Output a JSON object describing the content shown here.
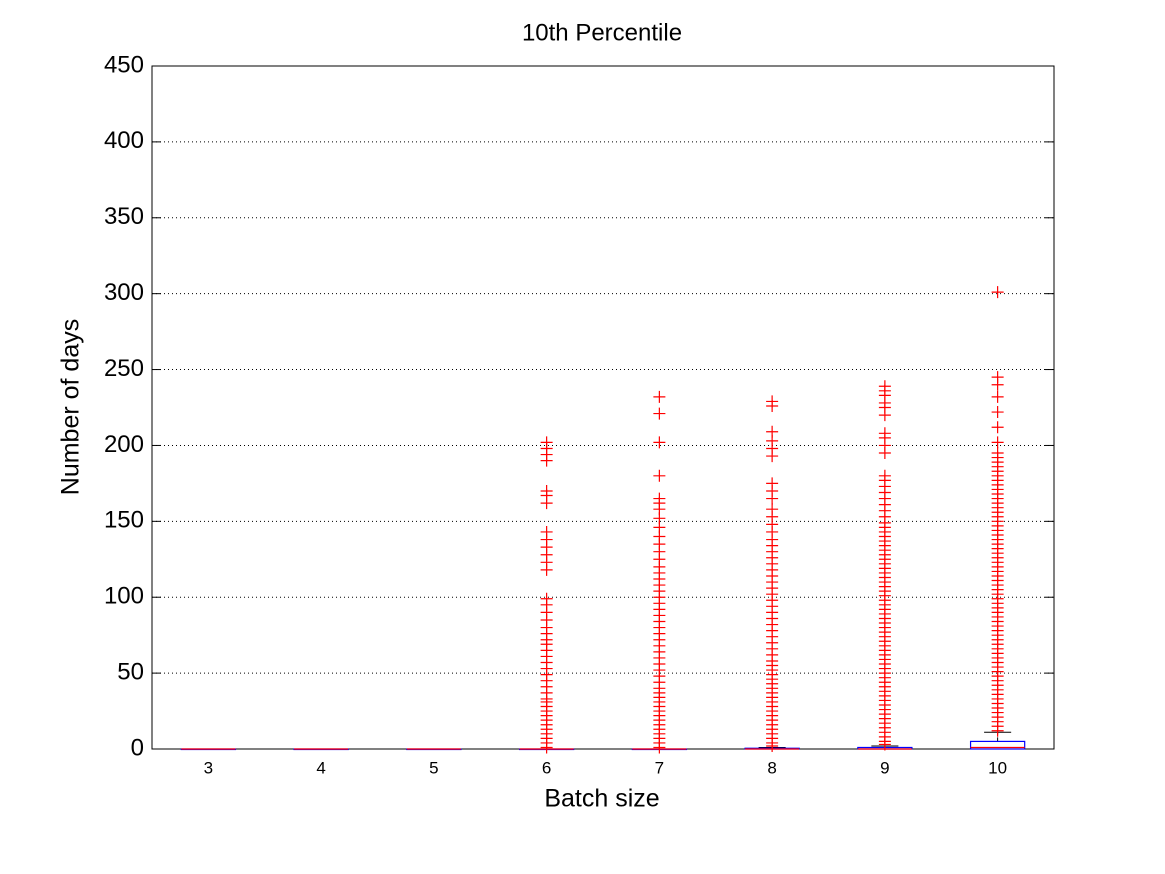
{
  "chart_data": {
    "type": "box",
    "title": "10th Percentile",
    "x_label": "Batch size",
    "y_label": "Number of days",
    "categories": [
      3,
      4,
      5,
      6,
      7,
      8,
      9,
      10
    ],
    "boxes": [
      {
        "min": 0,
        "q1": 0,
        "median": 0,
        "q3": 0,
        "max": 0,
        "outliers": []
      },
      {
        "min": 0,
        "q1": 0,
        "median": 0,
        "q3": 0,
        "max": 0,
        "outliers": []
      },
      {
        "min": 0,
        "q1": 0,
        "median": 0,
        "q3": 0,
        "max": 0,
        "outliers": []
      },
      {
        "min": 0,
        "q1": 0,
        "median": 0,
        "q3": 0,
        "max": 0,
        "outliers": [
          1,
          4,
          7,
          10,
          13,
          16,
          19,
          22,
          25,
          28,
          31,
          33,
          37,
          41,
          45,
          49,
          53,
          57,
          61,
          65,
          69,
          72,
          76,
          80,
          85,
          90,
          95,
          99,
          118,
          123,
          128,
          133,
          138,
          143,
          162,
          167,
          170,
          190,
          194,
          198,
          202
        ]
      },
      {
        "min": 0,
        "q1": 0,
        "median": 0,
        "q3": 0,
        "max": 0,
        "outliers": [
          1,
          4,
          7,
          10,
          13,
          16,
          19,
          22,
          25,
          28,
          31,
          34,
          37,
          40,
          44,
          48,
          52,
          56,
          60,
          64,
          68,
          72,
          76,
          80,
          84,
          88,
          92,
          96,
          100,
          104,
          108,
          112,
          116,
          120,
          125,
          130,
          135,
          140,
          146,
          152,
          158,
          162,
          165,
          180,
          202,
          221,
          232
        ]
      },
      {
        "min": 0,
        "q1": 0,
        "median": 0,
        "q3": 0.5,
        "max": 1,
        "outliers": [
          2,
          4,
          7,
          10,
          13,
          16,
          19,
          22,
          25,
          28,
          31,
          34,
          37,
          40,
          43,
          46,
          49,
          52,
          55,
          58,
          62,
          66,
          70,
          74,
          78,
          82,
          86,
          90,
          94,
          98,
          102,
          106,
          110,
          114,
          118,
          122,
          126,
          130,
          134,
          138,
          143,
          148,
          153,
          158,
          165,
          170,
          175,
          193,
          198,
          203,
          209,
          226,
          229
        ]
      },
      {
        "min": 0,
        "q1": 0,
        "median": 0,
        "q3": 1,
        "max": 2,
        "outliers": [
          3,
          5,
          8,
          11,
          14,
          17,
          20,
          23,
          26,
          29,
          32,
          35,
          38,
          41,
          44,
          47,
          50,
          53,
          56,
          59,
          62,
          65,
          68,
          71,
          74,
          77,
          80,
          83,
          86,
          89,
          92,
          95,
          98,
          101,
          104,
          107,
          110,
          113,
          116,
          119,
          122,
          125,
          128,
          131,
          134,
          137,
          140,
          143,
          146,
          149,
          153,
          157,
          161,
          165,
          169,
          173,
          177,
          180,
          195,
          200,
          205,
          208,
          220,
          225,
          228,
          233,
          236,
          239
        ]
      },
      {
        "min": 0,
        "q1": 0,
        "median": 1,
        "q3": 5,
        "max": 11,
        "outliers": [
          12,
          15,
          18,
          21,
          24,
          27,
          30,
          33,
          36,
          39,
          42,
          45,
          48,
          51,
          54,
          57,
          60,
          63,
          66,
          69,
          72,
          75,
          78,
          81,
          84,
          87,
          90,
          93,
          96,
          99,
          102,
          105,
          108,
          111,
          114,
          117,
          120,
          123,
          126,
          129,
          132,
          135,
          138,
          141,
          144,
          147,
          150,
          153,
          156,
          159,
          162,
          165,
          168,
          171,
          174,
          177,
          180,
          183,
          186,
          189,
          192,
          195,
          202,
          212,
          222,
          232,
          240,
          245,
          301
        ]
      }
    ],
    "box_color": "#0000ff",
    "median_color": "#ff0000",
    "whisker_color": "#000000",
    "outlier_color": "#ff0000",
    "ylim": [
      0,
      450
    ],
    "yticks": [
      0,
      50,
      100,
      150,
      200,
      250,
      300,
      350,
      400,
      450
    ],
    "grid": true
  }
}
